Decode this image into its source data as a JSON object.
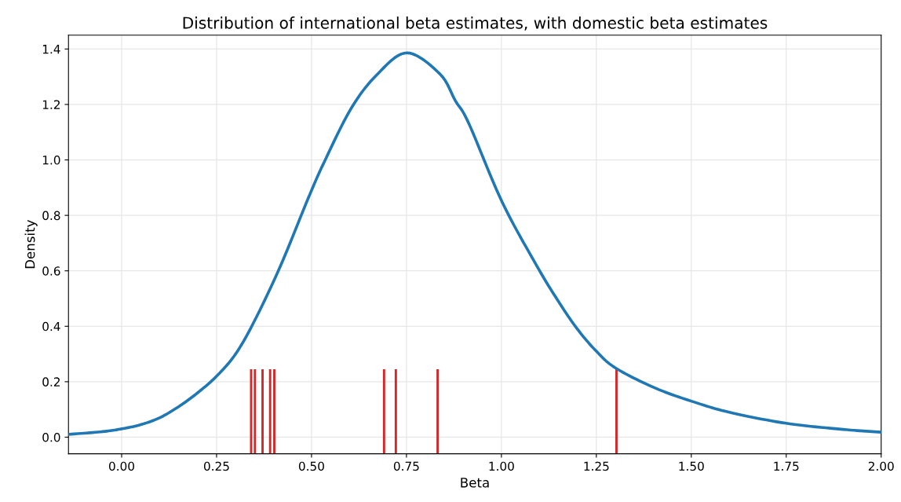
{
  "chart_data": {
    "type": "line",
    "title": "Distribution of international beta estimates, with domestic beta estimates",
    "xlabel": "Beta",
    "ylabel": "Density",
    "xlim": [
      -0.14,
      2.0
    ],
    "ylim": [
      -0.06,
      1.45
    ],
    "xticks": [
      {
        "value": 0,
        "label": "0.00"
      },
      {
        "value": 0.25,
        "label": "0.25"
      },
      {
        "value": 0.5,
        "label": "0.50"
      },
      {
        "value": 0.75,
        "label": "0.75"
      },
      {
        "value": 1,
        "label": "1.00"
      },
      {
        "value": 1.25,
        "label": "1.25"
      },
      {
        "value": 1.5,
        "label": "1.50"
      },
      {
        "value": 1.75,
        "label": "1.75"
      },
      {
        "value": 2,
        "label": "2.00"
      }
    ],
    "yticks": [
      {
        "value": 0,
        "label": "0.0"
      },
      {
        "value": 0.2,
        "label": "0.2"
      },
      {
        "value": 0.4,
        "label": "0.4"
      },
      {
        "value": 0.6,
        "label": "0.6"
      },
      {
        "value": 0.8,
        "label": "0.8"
      },
      {
        "value": 1,
        "label": "1.0"
      },
      {
        "value": 1.2,
        "label": "1.2"
      },
      {
        "value": 1.4,
        "label": "1.4"
      }
    ],
    "grid": true,
    "legend": false,
    "series": [
      {
        "color": "#1f77b4",
        "x": [
          -0.14,
          -0.05,
          0.0,
          0.05,
          0.1,
          0.15,
          0.2,
          0.25,
          0.3,
          0.35,
          0.418,
          0.492,
          0.534,
          0.604,
          0.672,
          0.751,
          0.838,
          0.879,
          0.914,
          1.002,
          1.094,
          1.15,
          1.2,
          1.25,
          1.3,
          1.4,
          1.5,
          1.6,
          1.75,
          1.9,
          2.0
        ],
        "values": [
          0.01,
          0.02,
          0.03,
          0.045,
          0.07,
          0.11,
          0.16,
          0.22,
          0.3,
          0.42,
          0.617,
          0.864,
          0.994,
          1.185,
          1.307,
          1.386,
          1.31,
          1.213,
          1.132,
          0.848,
          0.616,
          0.49,
          0.39,
          0.31,
          0.25,
          0.18,
          0.13,
          0.09,
          0.05,
          0.028,
          0.018
        ]
      },
      {
        "type": "bar",
        "color": "#d62728",
        "x": [
          0.341,
          0.351,
          0.371,
          0.391,
          0.402,
          0.691,
          0.722,
          0.832,
          1.303
        ],
        "base": [
          -0.06,
          -0.06,
          -0.06,
          -0.06,
          -0.06,
          -0.06,
          -0.06,
          -0.06,
          -0.06
        ],
        "values": [
          0.305,
          0.305,
          0.305,
          0.305,
          0.305,
          0.305,
          0.305,
          0.305,
          0.305
        ]
      }
    ]
  }
}
